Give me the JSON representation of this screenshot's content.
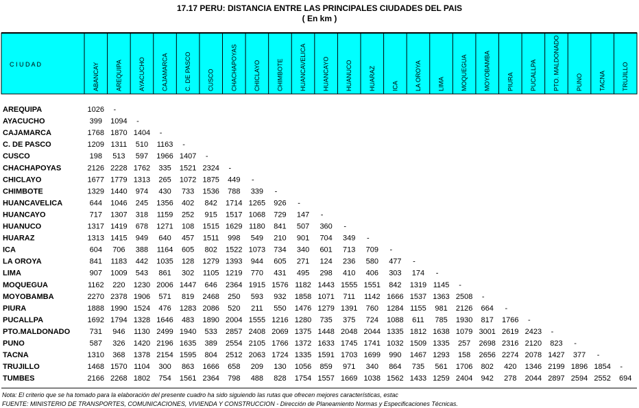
{
  "header": {
    "title": "17.17  PERU: DISTANCIA ENTRE LAS PRINCIPALES CIUDADES DEL PAIS",
    "subtitle": "( En km )"
  },
  "table": {
    "city_header": "C I U D A D",
    "columns": [
      "ABANCAY",
      "AREQUIPA",
      "AYACUCHO",
      "CAJAMARCA",
      "C. DE PASCO",
      "CUSCO",
      "CHACHAPOYAS",
      "CHICLAYO",
      "CHIMBOTE",
      "HUANCAVELICA",
      "HUANCAYO",
      "HUANUCO",
      "HUARAZ",
      "ICA",
      "LA OROYA",
      "LIMA",
      "MOQUEGUA",
      "MOYOBAMBA",
      "PIURA",
      "PUCALLPA",
      "PTO. MALDONADO",
      "PUNO",
      "TACNA",
      "TRUJILLO"
    ],
    "rows": [
      {
        "city": "AREQUIPA",
        "values": [
          1026,
          "-"
        ]
      },
      {
        "city": "AYACUCHO",
        "values": [
          399,
          1094,
          "-"
        ]
      },
      {
        "city": "CAJAMARCA",
        "values": [
          1768,
          1870,
          1404,
          "-"
        ]
      },
      {
        "city": "C. DE PASCO",
        "values": [
          1209,
          1311,
          510,
          1163,
          "-"
        ]
      },
      {
        "city": "CUSCO",
        "values": [
          198,
          513,
          597,
          1966,
          1407,
          "-"
        ]
      },
      {
        "city": "CHACHAPOYAS",
        "values": [
          2126,
          2228,
          1762,
          335,
          1521,
          2324,
          "-"
        ]
      },
      {
        "city": "CHICLAYO",
        "values": [
          1677,
          1779,
          1313,
          265,
          1072,
          1875,
          449,
          "-"
        ]
      },
      {
        "city": "CHIMBOTE",
        "values": [
          1329,
          1440,
          974,
          430,
          733,
          1536,
          788,
          339,
          "-"
        ]
      },
      {
        "city": "HUANCAVELICA",
        "values": [
          644,
          1046,
          245,
          1356,
          402,
          842,
          1714,
          1265,
          926,
          "-"
        ]
      },
      {
        "city": "HUANCAYO",
        "values": [
          717,
          1307,
          318,
          1159,
          252,
          915,
          1517,
          1068,
          729,
          147,
          "-"
        ]
      },
      {
        "city": "HUANUCO",
        "values": [
          1317,
          1419,
          678,
          1271,
          108,
          1515,
          1629,
          1180,
          841,
          507,
          360,
          "-"
        ]
      },
      {
        "city": "HUARAZ",
        "values": [
          1313,
          1415,
          949,
          640,
          457,
          1511,
          998,
          549,
          210,
          901,
          704,
          349,
          "-"
        ]
      },
      {
        "city": "ICA",
        "values": [
          604,
          706,
          388,
          1164,
          605,
          802,
          1522,
          1073,
          734,
          340,
          601,
          713,
          709,
          "-"
        ]
      },
      {
        "city": "LA OROYA",
        "values": [
          841,
          1183,
          442,
          1035,
          128,
          1279,
          1393,
          944,
          605,
          271,
          124,
          236,
          580,
          477,
          "-"
        ]
      },
      {
        "city": "LIMA",
        "values": [
          907,
          1009,
          543,
          861,
          302,
          1105,
          1219,
          770,
          431,
          495,
          298,
          410,
          406,
          303,
          174,
          "-"
        ]
      },
      {
        "city": "MOQUEGUA",
        "values": [
          1162,
          220,
          1230,
          2006,
          1447,
          646,
          2364,
          1915,
          1576,
          1182,
          1443,
          1555,
          1551,
          842,
          1319,
          1145,
          "-"
        ]
      },
      {
        "city": "MOYOBAMBA",
        "values": [
          2270,
          2378,
          1906,
          571,
          819,
          2468,
          250,
          593,
          932,
          1858,
          1071,
          711,
          1142,
          1666,
          1537,
          1363,
          2508,
          "-"
        ]
      },
      {
        "city": "PIURA",
        "values": [
          1888,
          1990,
          1524,
          476,
          1283,
          2086,
          520,
          211,
          550,
          1476,
          1279,
          1391,
          760,
          1284,
          1155,
          981,
          2126,
          664,
          "-"
        ]
      },
      {
        "city": "PUCALLPA",
        "values": [
          1692,
          1794,
          1328,
          1646,
          483,
          1890,
          2004,
          1555,
          1216,
          1280,
          735,
          375,
          724,
          1088,
          611,
          785,
          1930,
          817,
          1766,
          "-"
        ]
      },
      {
        "city": "PTO.MALDONADO",
        "values": [
          731,
          946,
          1130,
          2499,
          1940,
          533,
          2857,
          2408,
          2069,
          1375,
          1448,
          2048,
          2044,
          1335,
          1812,
          1638,
          1079,
          3001,
          2619,
          2423,
          "-"
        ]
      },
      {
        "city": "PUNO",
        "values": [
          587,
          326,
          1420,
          2196,
          1635,
          389,
          2554,
          2105,
          1766,
          1372,
          1633,
          1745,
          1741,
          1032,
          1509,
          1335,
          257,
          2698,
          2316,
          2120,
          823,
          "-"
        ]
      },
      {
        "city": "TACNA",
        "values": [
          1310,
          368,
          1378,
          2154,
          1595,
          804,
          2512,
          2063,
          1724,
          1335,
          1591,
          1703,
          1699,
          990,
          1467,
          1293,
          158,
          2656,
          2274,
          2078,
          1427,
          377,
          "-"
        ]
      },
      {
        "city": "TRUJILLO",
        "values": [
          1468,
          1570,
          1104,
          300,
          863,
          1666,
          658,
          209,
          130,
          1056,
          859,
          971,
          340,
          864,
          735,
          561,
          1706,
          802,
          420,
          1346,
          2199,
          1896,
          1854,
          "-"
        ]
      },
      {
        "city": "TUMBES",
        "values": [
          2166,
          2268,
          1802,
          754,
          1561,
          2364,
          798,
          488,
          828,
          1754,
          1557,
          1669,
          1038,
          1562,
          1433,
          1259,
          2404,
          942,
          278,
          2044,
          2897,
          2594,
          2552,
          694
        ]
      }
    ]
  },
  "notes": {
    "note": "Nota: El criterio que se ha tomado para la elaboración del presente cuadro ha sido siguiendo las rutas que ofrecen mejores características, estac",
    "source": "FUENTE: MINISTERIO DE TRANSPORTES, COMUNICACIONES, VIVIENDA Y CONSTRUCCION - Dirección de Planeamiento Normas y Especificaciones Técnicas."
  }
}
